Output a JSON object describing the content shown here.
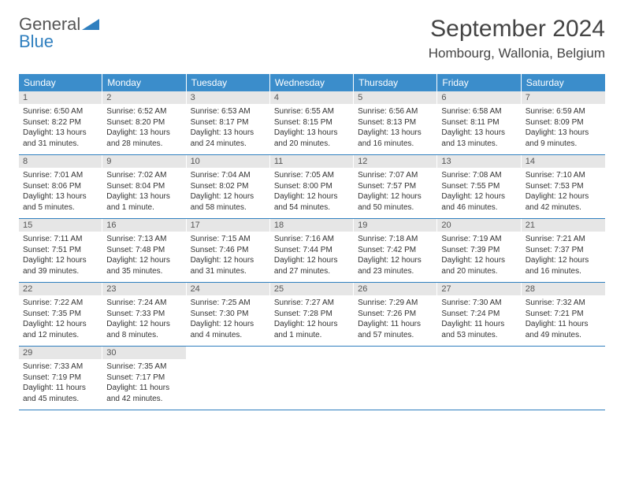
{
  "logo": {
    "word1": "General",
    "word2": "Blue"
  },
  "title": "September 2024",
  "location": "Hombourg, Wallonia, Belgium",
  "colors": {
    "header_bg": "#3b8dcb",
    "rule": "#2f7fbf",
    "daynum_bg": "#e6e6e6"
  },
  "weekdays": [
    "Sunday",
    "Monday",
    "Tuesday",
    "Wednesday",
    "Thursday",
    "Friday",
    "Saturday"
  ],
  "weeks": [
    [
      {
        "n": "1",
        "sr": "6:50 AM",
        "ss": "8:22 PM",
        "dl": "13 hours and 31 minutes."
      },
      {
        "n": "2",
        "sr": "6:52 AM",
        "ss": "8:20 PM",
        "dl": "13 hours and 28 minutes."
      },
      {
        "n": "3",
        "sr": "6:53 AM",
        "ss": "8:17 PM",
        "dl": "13 hours and 24 minutes."
      },
      {
        "n": "4",
        "sr": "6:55 AM",
        "ss": "8:15 PM",
        "dl": "13 hours and 20 minutes."
      },
      {
        "n": "5",
        "sr": "6:56 AM",
        "ss": "8:13 PM",
        "dl": "13 hours and 16 minutes."
      },
      {
        "n": "6",
        "sr": "6:58 AM",
        "ss": "8:11 PM",
        "dl": "13 hours and 13 minutes."
      },
      {
        "n": "7",
        "sr": "6:59 AM",
        "ss": "8:09 PM",
        "dl": "13 hours and 9 minutes."
      }
    ],
    [
      {
        "n": "8",
        "sr": "7:01 AM",
        "ss": "8:06 PM",
        "dl": "13 hours and 5 minutes."
      },
      {
        "n": "9",
        "sr": "7:02 AM",
        "ss": "8:04 PM",
        "dl": "13 hours and 1 minute."
      },
      {
        "n": "10",
        "sr": "7:04 AM",
        "ss": "8:02 PM",
        "dl": "12 hours and 58 minutes."
      },
      {
        "n": "11",
        "sr": "7:05 AM",
        "ss": "8:00 PM",
        "dl": "12 hours and 54 minutes."
      },
      {
        "n": "12",
        "sr": "7:07 AM",
        "ss": "7:57 PM",
        "dl": "12 hours and 50 minutes."
      },
      {
        "n": "13",
        "sr": "7:08 AM",
        "ss": "7:55 PM",
        "dl": "12 hours and 46 minutes."
      },
      {
        "n": "14",
        "sr": "7:10 AM",
        "ss": "7:53 PM",
        "dl": "12 hours and 42 minutes."
      }
    ],
    [
      {
        "n": "15",
        "sr": "7:11 AM",
        "ss": "7:51 PM",
        "dl": "12 hours and 39 minutes."
      },
      {
        "n": "16",
        "sr": "7:13 AM",
        "ss": "7:48 PM",
        "dl": "12 hours and 35 minutes."
      },
      {
        "n": "17",
        "sr": "7:15 AM",
        "ss": "7:46 PM",
        "dl": "12 hours and 31 minutes."
      },
      {
        "n": "18",
        "sr": "7:16 AM",
        "ss": "7:44 PM",
        "dl": "12 hours and 27 minutes."
      },
      {
        "n": "19",
        "sr": "7:18 AM",
        "ss": "7:42 PM",
        "dl": "12 hours and 23 minutes."
      },
      {
        "n": "20",
        "sr": "7:19 AM",
        "ss": "7:39 PM",
        "dl": "12 hours and 20 minutes."
      },
      {
        "n": "21",
        "sr": "7:21 AM",
        "ss": "7:37 PM",
        "dl": "12 hours and 16 minutes."
      }
    ],
    [
      {
        "n": "22",
        "sr": "7:22 AM",
        "ss": "7:35 PM",
        "dl": "12 hours and 12 minutes."
      },
      {
        "n": "23",
        "sr": "7:24 AM",
        "ss": "7:33 PM",
        "dl": "12 hours and 8 minutes."
      },
      {
        "n": "24",
        "sr": "7:25 AM",
        "ss": "7:30 PM",
        "dl": "12 hours and 4 minutes."
      },
      {
        "n": "25",
        "sr": "7:27 AM",
        "ss": "7:28 PM",
        "dl": "12 hours and 1 minute."
      },
      {
        "n": "26",
        "sr": "7:29 AM",
        "ss": "7:26 PM",
        "dl": "11 hours and 57 minutes."
      },
      {
        "n": "27",
        "sr": "7:30 AM",
        "ss": "7:24 PM",
        "dl": "11 hours and 53 minutes."
      },
      {
        "n": "28",
        "sr": "7:32 AM",
        "ss": "7:21 PM",
        "dl": "11 hours and 49 minutes."
      }
    ],
    [
      {
        "n": "29",
        "sr": "7:33 AM",
        "ss": "7:19 PM",
        "dl": "11 hours and 45 minutes."
      },
      {
        "n": "30",
        "sr": "7:35 AM",
        "ss": "7:17 PM",
        "dl": "11 hours and 42 minutes."
      },
      null,
      null,
      null,
      null,
      null
    ]
  ],
  "labels": {
    "sunrise": "Sunrise:",
    "sunset": "Sunset:",
    "daylight": "Daylight:"
  }
}
